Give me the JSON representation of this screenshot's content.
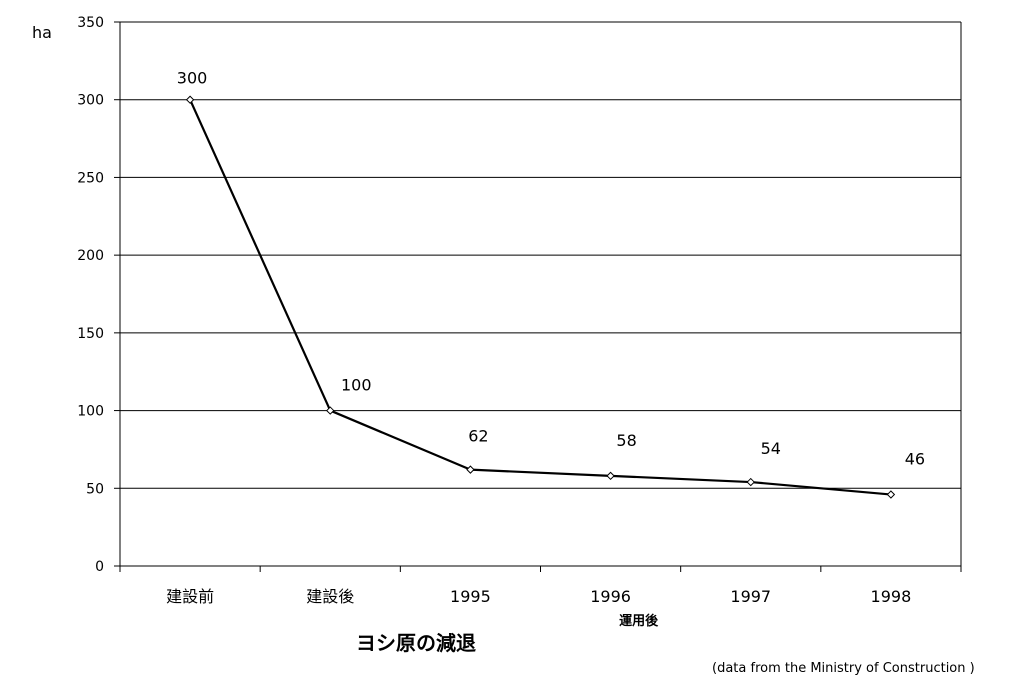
{
  "chart_data": {
    "type": "line",
    "title": "ヨシ原の減退",
    "ylabel": "ha",
    "xlabel": "",
    "categories": [
      "建設前",
      "建設後",
      "1995",
      "1996",
      "1997",
      "1998"
    ],
    "category_group_label": "運用後",
    "category_group_anchor": "1996",
    "values": [
      300,
      100,
      62,
      58,
      54,
      46
    ],
    "data_labels": [
      "300",
      "100",
      "62",
      "58",
      "54",
      "46"
    ],
    "ylim": [
      0,
      350
    ],
    "yticks": [
      0,
      50,
      100,
      150,
      200,
      250,
      300,
      350
    ],
    "ytick_labels": [
      "0",
      "50",
      "100",
      "150",
      "200",
      "250",
      "300",
      "350"
    ],
    "grid": true,
    "legend": "none",
    "source_note": "(data from the Ministry of Construction )",
    "colors": {
      "line": "#000000",
      "grid": "#000000",
      "marker_fill": "#ffffff",
      "background": "#ffffff"
    }
  }
}
